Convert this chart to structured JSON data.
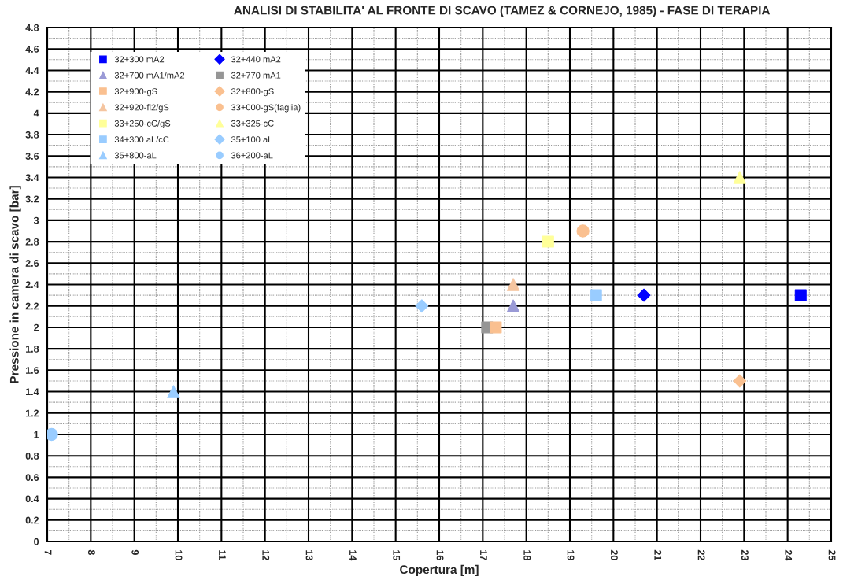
{
  "chart_data": {
    "type": "scatter",
    "title": "ANALISI DI STABILITA' AL FRONTE DI SCAVO (TAMEZ & CORNEJO, 1985) - FASE DI TERAPIA",
    "xlabel": "Copertura [m]",
    "ylabel": "Pressione in camera di scavo [bar]",
    "series": [
      {
        "name": "32+300 mA2",
        "color": "#0000ff",
        "marker": "square",
        "x": [
          24.3
        ],
        "values": [
          2.3
        ]
      },
      {
        "name": "32+440 mA2",
        "color": "#0000ff",
        "marker": "diamond",
        "x": [
          20.7
        ],
        "values": [
          2.3
        ]
      },
      {
        "name": "32+700 mA1/mA2",
        "color": "#9a9ad6",
        "marker": "triangle",
        "x": [
          17.7
        ],
        "values": [
          2.2
        ]
      },
      {
        "name": "32+770 mA1",
        "color": "#969696",
        "marker": "square",
        "x": [
          17.1
        ],
        "values": [
          2.0
        ]
      },
      {
        "name": "32+900-gS",
        "color": "#fac090",
        "marker": "square",
        "x": [
          17.3
        ],
        "values": [
          2.0
        ]
      },
      {
        "name": "32+800-gS",
        "color": "#fac090",
        "marker": "diamond",
        "x": [
          22.9
        ],
        "values": [
          1.5
        ]
      },
      {
        "name": "32+920-fl2/gS",
        "color": "#f5c5a0",
        "marker": "triangle",
        "x": [
          17.7
        ],
        "values": [
          2.4
        ]
      },
      {
        "name": "33+000-gS(faglia)",
        "color": "#fac090",
        "marker": "circle",
        "x": [
          19.3
        ],
        "values": [
          2.9
        ]
      },
      {
        "name": "33+250-cC/gS",
        "color": "#ffff99",
        "marker": "square",
        "x": [
          18.5
        ],
        "values": [
          2.8
        ]
      },
      {
        "name": "33+325-cC",
        "color": "#ffff99",
        "marker": "triangle",
        "x": [
          22.9
        ],
        "values": [
          3.4
        ]
      },
      {
        "name": "34+300 aL/cC",
        "color": "#99ccff",
        "marker": "square",
        "x": [
          19.6
        ],
        "values": [
          2.3
        ]
      },
      {
        "name": "35+100 aL",
        "color": "#99ccff",
        "marker": "diamond",
        "x": [
          15.6
        ],
        "values": [
          2.2
        ]
      },
      {
        "name": "35+800-aL",
        "color": "#99ccff",
        "marker": "triangle",
        "x": [
          9.9
        ],
        "values": [
          1.4
        ]
      },
      {
        "name": "36+200-aL",
        "color": "#99ccff",
        "marker": "circle",
        "x": [
          7.1
        ],
        "values": [
          1.0
        ]
      }
    ],
    "xlim": [
      7,
      25
    ],
    "xticks": [
      7,
      8,
      9,
      10,
      11,
      12,
      13,
      14,
      15,
      16,
      17,
      18,
      19,
      20,
      21,
      22,
      23,
      24,
      25
    ],
    "ylim": [
      0,
      4.8
    ],
    "yticks": [
      0,
      0.2,
      0.4,
      0.6,
      0.8,
      1,
      1.2,
      1.4,
      1.6,
      1.8,
      2,
      2.2,
      2.4,
      2.6,
      2.8,
      3,
      3.2,
      3.4,
      3.6,
      3.8,
      4,
      4.2,
      4.4,
      4.6,
      4.8
    ],
    "grid": true,
    "legend": "top left"
  }
}
